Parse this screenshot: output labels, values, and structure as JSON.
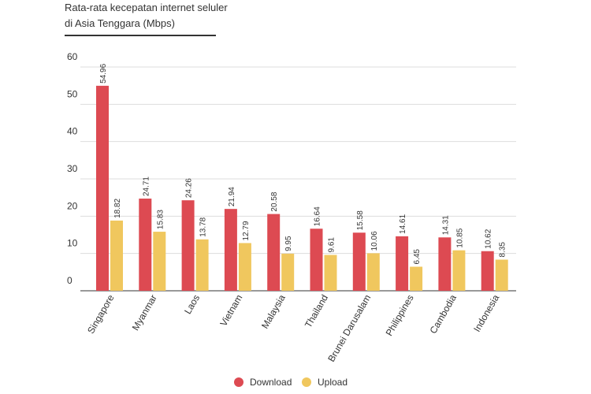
{
  "colors": {
    "download": "#dd4a52",
    "upload": "#f0c75e",
    "grid": "#dddddd",
    "text": "#333333"
  },
  "chart_data": {
    "type": "bar",
    "title_line1": "Rata-rata kecepatan internet seluler",
    "title_line2": "di Asia Tenggara (Mbps)",
    "categories": [
      "Singapore",
      "Myanmar",
      "Laos",
      "Vietnam",
      "Malaysia",
      "Thailand",
      "Brunei Darusalam",
      "Philippines",
      "Cambodia",
      "Indonesia"
    ],
    "series": [
      {
        "name": "Download",
        "values": [
          54.96,
          24.71,
          24.26,
          21.94,
          20.58,
          16.64,
          15.58,
          14.61,
          14.31,
          10.62
        ]
      },
      {
        "name": "Upload",
        "values": [
          18.82,
          15.83,
          13.78,
          12.79,
          9.95,
          9.61,
          10.06,
          6.45,
          10.85,
          8.35
        ]
      }
    ],
    "yticks": [
      0,
      10,
      20,
      30,
      40,
      50,
      60
    ],
    "ylim": [
      0,
      60
    ],
    "grid": true,
    "legend_position": "bottom-center"
  }
}
